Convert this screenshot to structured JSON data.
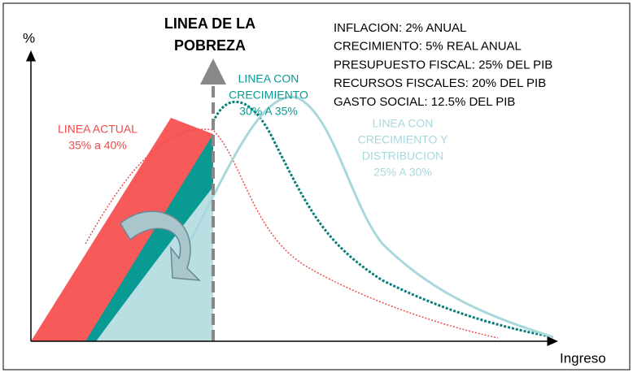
{
  "axes": {
    "y_label": "%",
    "x_label": "Ingreso"
  },
  "poverty_line": {
    "lines": [
      "LINEA DE LA",
      "POBREZA"
    ]
  },
  "assumptions": [
    "INFLACION: 2% ANUAL",
    "CRECIMIENTO: 5% REAL ANUAL",
    "PRESUPUESTO FISCAL: 25% DEL PIB",
    "RECURSOS FISCALES: 20% DEL PIB",
    "GASTO SOCIAL: 12.5% DEL PIB"
  ],
  "curves": [
    {
      "lines": [
        "LINEA ACTUAL",
        "35% a 40%"
      ]
    },
    {
      "lines": [
        "LINEA CON",
        "CRECIMIENTO",
        "30% A 35%"
      ]
    },
    {
      "lines": [
        "LINEA CON",
        "CRECIMIENTO Y",
        "DISTRIBUCION",
        "25% A 30%"
      ]
    }
  ]
}
